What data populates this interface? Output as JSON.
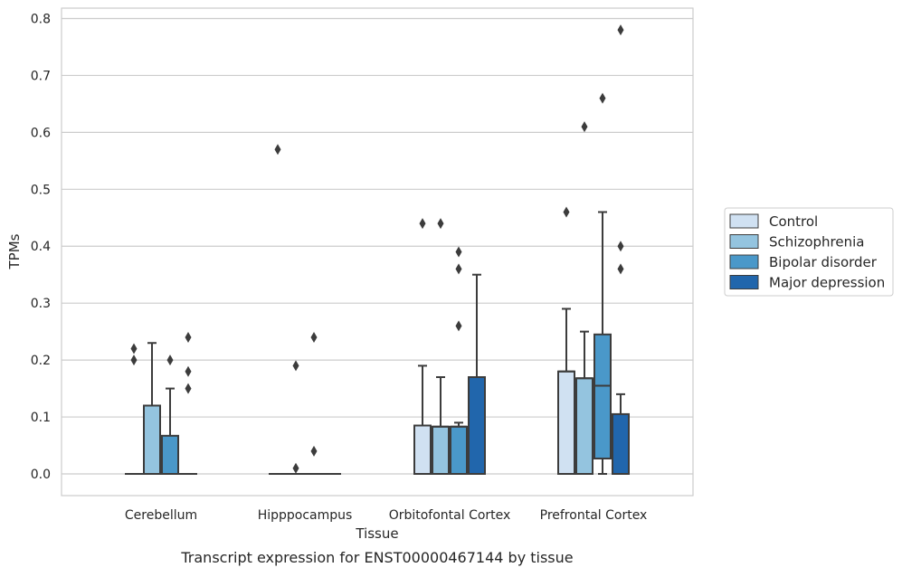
{
  "chart_data": {
    "type": "box",
    "title": "",
    "caption": "Transcript expression for ENST00000467144 by tissue",
    "xlabel": "Tissue",
    "ylabel": "TPMs",
    "ylim": [
      -0.04,
      0.82
    ],
    "yticks": [
      "0.0",
      "0.1",
      "0.2",
      "0.3",
      "0.4",
      "0.5",
      "0.6",
      "0.7",
      "0.8"
    ],
    "ytick_values": [
      0,
      0.1,
      0.2,
      0.3,
      0.4,
      0.5,
      0.6,
      0.7,
      0.8
    ],
    "grid": "horizontal",
    "legend_position": "right",
    "categories": [
      "Cerebellum",
      "Hipppocampus",
      "Orbitofontal Cortex",
      "Prefrontal Cortex"
    ],
    "series": [
      {
        "name": "Control",
        "color": "#d0e1f2",
        "boxes": [
          {
            "q1": 0,
            "median": 0,
            "q3": 0,
            "whisker_low": 0,
            "whisker_high": 0,
            "outliers": [
              0.2,
              0.22
            ]
          },
          {
            "q1": 0,
            "median": 0,
            "q3": 0,
            "whisker_low": 0,
            "whisker_high": 0,
            "outliers": [
              0.57
            ]
          },
          {
            "q1": 0,
            "median": 0.085,
            "q3": 0.085,
            "whisker_low": 0,
            "whisker_high": 0.19,
            "outliers": [
              0.44
            ]
          },
          {
            "q1": 0,
            "median": 0.18,
            "q3": 0.18,
            "whisker_low": 0,
            "whisker_high": 0.29,
            "outliers": [
              0.46
            ]
          }
        ]
      },
      {
        "name": "Schizophrenia",
        "color": "#94c4df",
        "boxes": [
          {
            "q1": 0,
            "median": 0,
            "q3": 0.12,
            "whisker_low": 0,
            "whisker_high": 0.23,
            "outliers": []
          },
          {
            "q1": 0,
            "median": 0,
            "q3": 0,
            "whisker_low": 0,
            "whisker_high": 0,
            "outliers": [
              0.01,
              0.19
            ]
          },
          {
            "q1": 0,
            "median": 0.083,
            "q3": 0.083,
            "whisker_low": 0,
            "whisker_high": 0.17,
            "outliers": [
              0.44
            ]
          },
          {
            "q1": 0,
            "median": 0.168,
            "q3": 0.168,
            "whisker_low": 0,
            "whisker_high": 0.25,
            "outliers": [
              0.61
            ]
          }
        ]
      },
      {
        "name": "Bipolar disorder",
        "color": "#4a98c9",
        "boxes": [
          {
            "q1": 0,
            "median": 0,
            "q3": 0.067,
            "whisker_low": 0,
            "whisker_high": 0.15,
            "outliers": [
              0.2
            ]
          },
          {
            "q1": 0,
            "median": 0,
            "q3": 0,
            "whisker_low": 0,
            "whisker_high": 0,
            "outliers": [
              0.04,
              0.24
            ]
          },
          {
            "q1": 0,
            "median": 0.083,
            "q3": 0.083,
            "whisker_low": 0,
            "whisker_high": 0.09,
            "outliers": [
              0.26,
              0.36,
              0.39
            ]
          },
          {
            "q1": 0.027,
            "median": 0.155,
            "q3": 0.245,
            "whisker_low": 0,
            "whisker_high": 0.46,
            "outliers": [
              0.66
            ]
          }
        ]
      },
      {
        "name": "Major depression",
        "color": "#2166ac",
        "boxes": [
          {
            "q1": 0,
            "median": 0,
            "q3": 0,
            "whisker_low": 0,
            "whisker_high": 0,
            "outliers": [
              0.15,
              0.18,
              0.24
            ]
          },
          {
            "q1": 0,
            "median": 0,
            "q3": 0,
            "whisker_low": 0,
            "whisker_high": 0,
            "outliers": []
          },
          {
            "q1": 0,
            "median": 0,
            "q3": 0.17,
            "whisker_low": 0,
            "whisker_high": 0.35,
            "outliers": []
          },
          {
            "q1": 0,
            "median": 0,
            "q3": 0.105,
            "whisker_low": 0,
            "whisker_high": 0.14,
            "outliers": [
              0.36,
              0.4,
              0.78
            ]
          }
        ]
      }
    ]
  }
}
